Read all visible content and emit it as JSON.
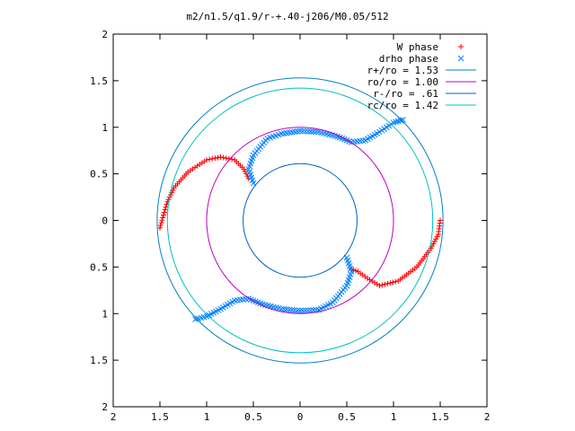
{
  "chart_data": {
    "type": "scatter",
    "title": "m2/n1.5/q1.9/r-+.40-j206/M0.05/512",
    "xlabel": "",
    "ylabel": "",
    "xlim": [
      -2,
      2
    ],
    "ylim": [
      -2,
      2
    ],
    "x_ticks": [
      -2,
      -1.5,
      -1,
      -0.5,
      0,
      0.5,
      1,
      1.5,
      2
    ],
    "y_ticks": [
      -2,
      -1.5,
      -1,
      -0.5,
      0,
      0.5,
      1,
      1.5,
      2
    ],
    "x_tick_labels": [
      "2",
      "1.5",
      "1",
      "0.5",
      "0",
      "0.5",
      "1",
      "1.5",
      "2"
    ],
    "y_tick_labels": [
      "2",
      "1.5",
      "1",
      "0.5",
      "0",
      "0.5",
      "1",
      "1.5",
      "2"
    ],
    "grid": false,
    "legend_position": "top-right",
    "legend": [
      {
        "label": "W phase",
        "marker": "plus",
        "color": "#ff0000"
      },
      {
        "label": "drho phase",
        "marker": "cross",
        "color": "#0080ff"
      },
      {
        "label": "r+/ro = 1.53",
        "marker": "line",
        "color": "#0080c0"
      },
      {
        "label": "ro/ro = 1.00",
        "marker": "line",
        "color": "#c000c0"
      },
      {
        "label": "r-/ro = .61",
        "marker": "line",
        "color": "#0060c0"
      },
      {
        "label": "rc/ro = 1.42",
        "marker": "line",
        "color": "#00c0c0"
      }
    ],
    "circles": [
      {
        "radius": 1.53,
        "color": "#0080c0"
      },
      {
        "radius": 1.0,
        "color": "#c000c0"
      },
      {
        "radius": 0.61,
        "color": "#0060c0"
      },
      {
        "radius": 1.42,
        "color": "#00c0c0"
      }
    ],
    "series": [
      {
        "marker": "plus",
        "color": "#ff0000",
        "polylines": [
          [
            [
              -1.5,
              -0.08
            ],
            [
              -1.47,
              0.03
            ],
            [
              -1.42,
              0.2
            ],
            [
              -1.35,
              0.35
            ],
            [
              -1.2,
              0.52
            ],
            [
              -1.0,
              0.65
            ],
            [
              -0.85,
              0.68
            ],
            [
              -0.7,
              0.65
            ],
            [
              -0.6,
              0.55
            ],
            [
              -0.55,
              0.45
            ]
          ],
          [
            [
              1.5,
              0.0
            ],
            [
              1.48,
              -0.15
            ],
            [
              1.4,
              -0.3
            ],
            [
              1.25,
              -0.5
            ],
            [
              1.05,
              -0.65
            ],
            [
              0.85,
              -0.7
            ],
            [
              0.72,
              -0.62
            ],
            [
              0.62,
              -0.55
            ],
            [
              0.55,
              -0.52
            ]
          ]
        ]
      },
      {
        "marker": "cross",
        "color": "#0080ff",
        "polylines": [
          [
            [
              -0.5,
              0.4
            ],
            [
              -0.55,
              0.55
            ],
            [
              -0.5,
              0.7
            ],
            [
              -0.35,
              0.88
            ],
            [
              -0.2,
              0.93
            ],
            [
              0.0,
              0.96
            ],
            [
              0.2,
              0.95
            ],
            [
              0.4,
              0.9
            ],
            [
              0.55,
              0.84
            ],
            [
              0.7,
              0.86
            ],
            [
              0.85,
              0.95
            ],
            [
              1.0,
              1.05
            ],
            [
              1.1,
              1.08
            ]
          ],
          [
            [
              0.5,
              -0.4
            ],
            [
              0.55,
              -0.55
            ],
            [
              0.5,
              -0.7
            ],
            [
              0.35,
              -0.88
            ],
            [
              0.2,
              -0.96
            ],
            [
              0.0,
              -0.97
            ],
            [
              -0.2,
              -0.95
            ],
            [
              -0.4,
              -0.9
            ],
            [
              -0.55,
              -0.84
            ],
            [
              -0.7,
              -0.86
            ],
            [
              -0.85,
              -0.95
            ],
            [
              -1.0,
              -1.03
            ],
            [
              -1.12,
              -1.06
            ]
          ]
        ]
      }
    ]
  }
}
